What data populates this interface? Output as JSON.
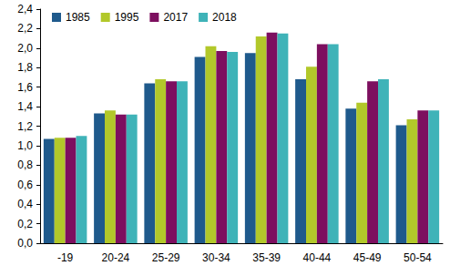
{
  "chart_data": {
    "type": "bar",
    "categories": [
      "-19",
      "20-24",
      "25-29",
      "30-34",
      "35-39",
      "40-44",
      "45-49",
      "50-54"
    ],
    "series": [
      {
        "name": "1985",
        "color": "#1f5a8c",
        "values": [
          1.07,
          1.33,
          1.64,
          1.91,
          1.95,
          1.68,
          1.38,
          1.21
        ]
      },
      {
        "name": "1995",
        "color": "#b2c82a",
        "values": [
          1.08,
          1.36,
          1.68,
          2.02,
          2.12,
          1.81,
          1.44,
          1.27
        ]
      },
      {
        "name": "2017",
        "color": "#7d0f5f",
        "values": [
          1.08,
          1.32,
          1.66,
          1.97,
          2.16,
          2.04,
          1.66,
          1.36
        ]
      },
      {
        "name": "2018",
        "color": "#3fb3b8",
        "values": [
          1.1,
          1.32,
          1.66,
          1.96,
          2.15,
          2.04,
          1.68,
          1.36
        ]
      }
    ],
    "ylim": [
      0,
      2.4
    ],
    "yticks": [
      {
        "value": 0,
        "label": "0,0"
      },
      {
        "value": 0.2,
        "label": "0,2"
      },
      {
        "value": 0.4,
        "label": "0,4"
      },
      {
        "value": 0.6,
        "label": "0,6"
      },
      {
        "value": 0.8,
        "label": "0,8"
      },
      {
        "value": 1.0,
        "label": "1,0"
      },
      {
        "value": 1.2,
        "label": "1,2"
      },
      {
        "value": 1.4,
        "label": "1,4"
      },
      {
        "value": 1.6,
        "label": "1,6"
      },
      {
        "value": 1.8,
        "label": "1,8"
      },
      {
        "value": 2.0,
        "label": "2,0"
      },
      {
        "value": 2.2,
        "label": "2,2"
      },
      {
        "value": 2.4,
        "label": "2,4"
      }
    ],
    "grid": false,
    "legend": "top-left"
  }
}
